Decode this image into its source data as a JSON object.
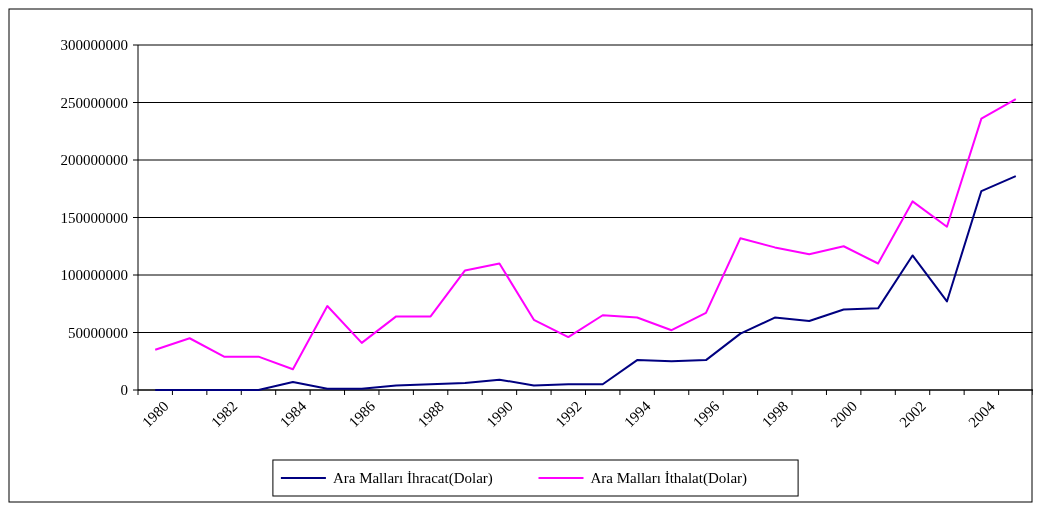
{
  "chart_data": {
    "type": "line",
    "categories": [
      "1980",
      null,
      "1982",
      null,
      "1984",
      null,
      "1986",
      null,
      "1988",
      null,
      "1990",
      null,
      "1992",
      null,
      "1994",
      null,
      "1996",
      null,
      "1998",
      null,
      "2000",
      null,
      "2002",
      null,
      "2004",
      null
    ],
    "series": [
      {
        "name": "Ara Malları İhracat(Dolar)",
        "color": "#000080",
        "values": [
          0,
          0,
          0,
          0,
          7000000,
          1000000,
          1000000,
          4000000,
          5000000,
          6000000,
          9000000,
          4000000,
          5000000,
          5000000,
          26000000,
          25000000,
          26000000,
          49000000,
          63000000,
          60000000,
          70000000,
          71000000,
          117000000,
          77000000,
          173000000,
          186000000
        ]
      },
      {
        "name": "Ara Malları İthalat(Dolar)",
        "color": "#ff00ff",
        "values": [
          35000000,
          45000000,
          29000000,
          29000000,
          18000000,
          73000000,
          41000000,
          64000000,
          64000000,
          104000000,
          110000000,
          61000000,
          46000000,
          65000000,
          63000000,
          52000000,
          67000000,
          132000000,
          124000000,
          118000000,
          125000000,
          110000000,
          164000000,
          142000000,
          236000000,
          253000000
        ]
      }
    ],
    "ylim": [
      0,
      300000000
    ],
    "yticks": [
      0,
      50000000,
      100000000,
      150000000,
      200000000,
      250000000,
      300000000
    ],
    "grid": "y",
    "legend": "bottom",
    "marker": "none",
    "line_style": "solid"
  }
}
